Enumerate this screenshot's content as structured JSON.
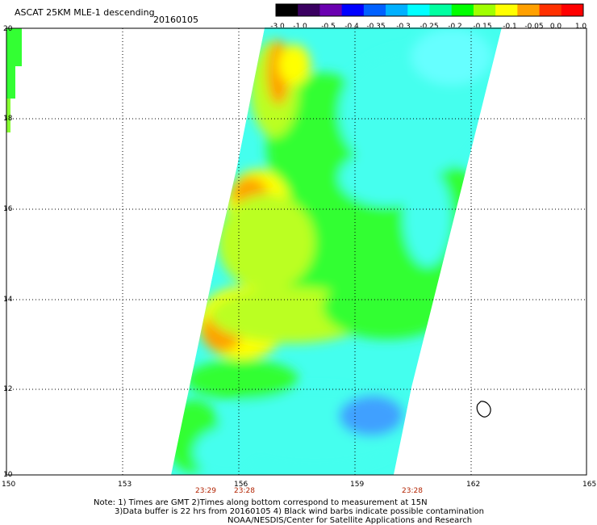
{
  "header": {
    "title": "ASCAT 25KM MLE-1 descending",
    "date": "20160105"
  },
  "colorbar": {
    "ticks": [
      "-3.0",
      "-1.0",
      "-0.5",
      "-0.4",
      "-0.35",
      "-0.3",
      "-0.25",
      "-0.2",
      "-0.15",
      "-0.1",
      "-0.05",
      "0.0",
      "1.0"
    ],
    "colors": [
      "#000000",
      "#3a0060",
      "#6a00b0",
      "#0000ff",
      "#0060ff",
      "#00b0ff",
      "#00ffff",
      "#00ffa0",
      "#00ff00",
      "#a0ff00",
      "#ffff00",
      "#ffa000",
      "#ff3000",
      "#ff0000"
    ]
  },
  "map": {
    "lon_labels": [
      "150",
      "153",
      "156",
      "159",
      "162",
      "165"
    ],
    "lat_labels": [
      "20",
      "18",
      "16",
      "14",
      "12",
      "10"
    ],
    "time_labels": [
      "23:29",
      "23:28",
      "23:28"
    ],
    "bad_data_color": "#000000",
    "field_colors": {
      "cyan": "#44ffee",
      "light_cyan": "#66ffff",
      "blue": "#3fa0ff",
      "green": "#33ff33",
      "yellow_green": "#bbff22",
      "yellow": "#ffff00",
      "orange": "#ffa000"
    }
  },
  "footer": {
    "note_line1": "Note: 1) Times are GMT 2)Times along bottom correspond to measurement at 15N",
    "note_line2": "3)Data buffer is 22 hrs from 20160105 4) Black wind barbs indicate possible contamination",
    "note_line3": "NOAA/NESDIS/Center for Satellite Applications and Research"
  }
}
